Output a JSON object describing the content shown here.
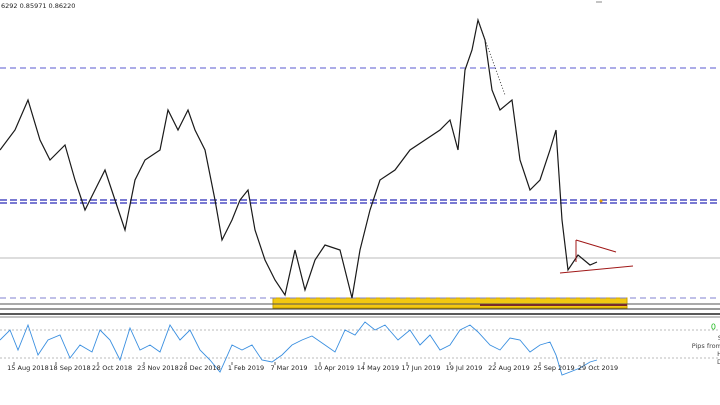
{
  "header": {
    "quote": "6292 0.85971 0.86220"
  },
  "x_axis": {
    "labels": [
      "15 Aug 2018",
      "18 Sep 2018",
      "22 Oct 2018",
      "23 Nov 2018",
      "28 Dec 2018",
      "1 Feb 2019",
      "7 Mar 2019",
      "10 Apr 2019",
      "14 May 2019",
      "17 Jun 2019",
      "19 Jul 2019",
      "22 Aug 2019",
      "25 Sep 2019",
      "29 Oct 2019"
    ]
  },
  "side_panel": {
    "status": "0",
    "lines": [
      "S",
      "Pips from",
      "H",
      "D"
    ]
  }
}
